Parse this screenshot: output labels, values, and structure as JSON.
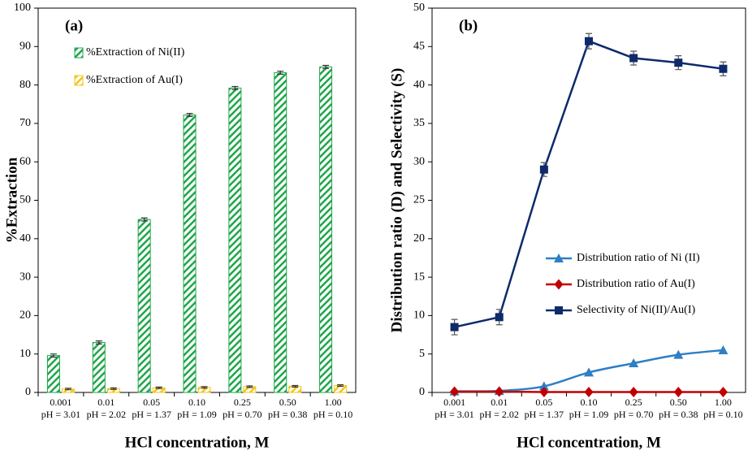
{
  "chart_data": [
    {
      "type": "bar",
      "annotation": "(a)",
      "y_label": "%Extraction",
      "x_label": "HCl concentration, M",
      "categories": [
        "0.001",
        "0.01",
        "0.05",
        "0.10",
        "0.25",
        "0.50",
        "1.00"
      ],
      "category_notes": [
        "pH = 3.01",
        "pH = 2.02",
        "pH = 1.37",
        "pH = 1.09",
        "pH = 0.70",
        "pH = 0.38",
        "pH = 0.10"
      ],
      "series": [
        {
          "name": "%Extraction of Ni(II)",
          "color": "#1fa64a",
          "values": [
            9.6,
            13.0,
            45.0,
            72.2,
            79.2,
            83.2,
            84.7
          ],
          "errors": [
            0.4,
            0.4,
            0.4,
            0.4,
            0.4,
            0.4,
            0.4
          ]
        },
        {
          "name": "%Extraction of Au(I)",
          "color": "#f5c518",
          "values": [
            0.9,
            1.0,
            1.2,
            1.3,
            1.5,
            1.6,
            1.8
          ],
          "errors": [
            0.2,
            0.2,
            0.2,
            0.2,
            0.2,
            0.2,
            0.2
          ]
        }
      ],
      "ylim": [
        0,
        100
      ],
      "yticks": [
        0,
        10,
        20,
        30,
        40,
        50,
        60,
        70,
        80,
        90,
        100
      ],
      "grid": false,
      "legend": "upper left"
    },
    {
      "type": "line",
      "annotation": "(b)",
      "y_label": "Distribution ratio (D) and Selectivity (S)",
      "x_label": "HCl concentration, M",
      "categories": [
        "0.001",
        "0.01",
        "0.05",
        "0.10",
        "0.25",
        "0.50",
        "1.00"
      ],
      "category_notes": [
        "pH = 3.01",
        "pH = 2.02",
        "pH = 1.37",
        "pH = 1.09",
        "pH = 0.70",
        "pH = 0.38",
        "pH = 0.10"
      ],
      "series": [
        {
          "name": "Distribution ratio of Ni (II)",
          "color": "#2e7fc4",
          "marker": "triangle",
          "smooth": true,
          "values": [
            0.15,
            0.2,
            0.8,
            2.6,
            3.8,
            4.9,
            5.5
          ]
        },
        {
          "name": "Distribution ratio of Au(I)",
          "color": "#c00000",
          "marker": "diamond",
          "smooth": true,
          "values": [
            0.1,
            0.1,
            0.05,
            0.05,
            0.05,
            0.05,
            0.05
          ]
        },
        {
          "name": "Selectivity of Ni(II)/Au(I)",
          "color": "#0d2a6b",
          "marker": "square",
          "smooth": false,
          "values": [
            8.5,
            9.8,
            29.0,
            45.7,
            43.5,
            42.9,
            42.1
          ],
          "errors": [
            1.0,
            1.0,
            0.9,
            1.0,
            0.9,
            0.9,
            0.9
          ]
        }
      ],
      "ylim": [
        0,
        50
      ],
      "yticks": [
        0,
        5,
        10,
        15,
        20,
        25,
        30,
        35,
        40,
        45,
        50
      ],
      "grid": false,
      "legend": "lower right"
    }
  ]
}
